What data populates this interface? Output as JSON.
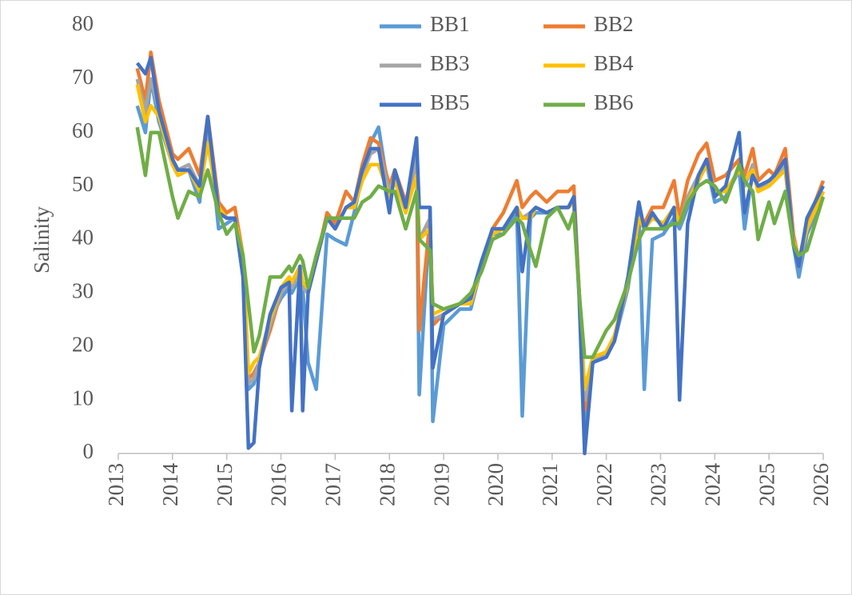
{
  "chart_data": {
    "type": "line",
    "y_label": "Salinity",
    "x": [
      2013.35,
      2013.5,
      2013.6,
      2013.75,
      2014.0,
      2014.1,
      2014.3,
      2014.5,
      2014.65,
      2014.85,
      2015.0,
      2015.15,
      2015.3,
      2015.4,
      2015.5,
      2015.6,
      2015.8,
      2016.0,
      2016.15,
      2016.2,
      2016.35,
      2016.4,
      2016.5,
      2016.65,
      2016.85,
      2017.0,
      2017.2,
      2017.35,
      2017.5,
      2017.65,
      2017.8,
      2018.0,
      2018.1,
      2018.3,
      2018.5,
      2018.55,
      2018.75,
      2018.8,
      2019.0,
      2019.3,
      2019.5,
      2019.7,
      2019.9,
      2020.1,
      2020.35,
      2020.45,
      2020.6,
      2020.7,
      2020.9,
      2021.1,
      2021.3,
      2021.4,
      2021.5,
      2021.6,
      2021.75,
      2022.0,
      2022.15,
      2022.4,
      2022.6,
      2022.7,
      2022.85,
      2023.05,
      2023.25,
      2023.35,
      2023.5,
      2023.7,
      2023.85,
      2024.0,
      2024.2,
      2024.45,
      2024.55,
      2024.7,
      2024.8,
      2025.0,
      2025.1,
      2025.3,
      2025.45,
      2025.55,
      2025.7,
      2026.0
    ],
    "series": [
      {
        "name": "BB1",
        "color": "#5b9bd5",
        "values": [
          65,
          60,
          70,
          62,
          54,
          52,
          53,
          47,
          62,
          42,
          43,
          44,
          33,
          12,
          13,
          17,
          25,
          29,
          31,
          30,
          33,
          31,
          17,
          12,
          41,
          40,
          39,
          45,
          52,
          58,
          61,
          48,
          52,
          45,
          55,
          11,
          45,
          6,
          24,
          27,
          27,
          35,
          41,
          41,
          45,
          7,
          44,
          45,
          45,
          46,
          46,
          47,
          30,
          4,
          17,
          19,
          21,
          31,
          45,
          12,
          40,
          41,
          44,
          42,
          46,
          51,
          54,
          47,
          48,
          53,
          42,
          53,
          49,
          50,
          51,
          53,
          39,
          33,
          41,
          48
        ]
      },
      {
        "name": "BB2",
        "color": "#ed7d31",
        "values": [
          72,
          66,
          75,
          66,
          56,
          55,
          57,
          52,
          63,
          47,
          45,
          46,
          37,
          14,
          15,
          17,
          23,
          30,
          32,
          31,
          34,
          32,
          31,
          36,
          45,
          43,
          49,
          47,
          54,
          59,
          58,
          50,
          53,
          47,
          55,
          23,
          44,
          24,
          26,
          28,
          29,
          35,
          42,
          45,
          51,
          46,
          48,
          49,
          47,
          49,
          49,
          50,
          30,
          8,
          17,
          19,
          22,
          32,
          44,
          43,
          46,
          46,
          51,
          44,
          51,
          56,
          58,
          51,
          52,
          55,
          52,
          57,
          51,
          53,
          52,
          57,
          41,
          36,
          43,
          51
        ]
      },
      {
        "name": "BB3",
        "color": "#a5a5a5",
        "values": [
          70,
          64,
          70,
          64,
          55,
          53,
          54,
          50,
          61,
          46,
          44,
          44,
          36,
          13,
          14,
          17,
          24,
          30,
          32,
          31,
          34,
          31,
          30,
          36,
          44,
          42,
          46,
          46,
          52,
          56,
          57,
          49,
          52,
          46,
          55,
          40,
          44,
          25,
          26,
          28,
          28,
          35,
          42,
          42,
          46,
          44,
          45,
          46,
          45,
          46,
          46,
          48,
          30,
          10,
          17,
          19,
          21,
          32,
          44,
          42,
          44,
          43,
          46,
          43,
          48,
          52,
          55,
          49,
          49,
          53,
          50,
          54,
          49,
          51,
          51,
          54,
          40,
          35,
          42,
          49
        ]
      },
      {
        "name": "BB4",
        "color": "#ffc000",
        "values": [
          69,
          62,
          65,
          63,
          54,
          52,
          53,
          49,
          58,
          46,
          44,
          44,
          37,
          15,
          17,
          18,
          25,
          31,
          33,
          32,
          35,
          32,
          31,
          36,
          44,
          42,
          46,
          46,
          51,
          54,
          54,
          48,
          51,
          45,
          52,
          40,
          42,
          26,
          27,
          28,
          28,
          35,
          41,
          42,
          46,
          44,
          44,
          46,
          45,
          46,
          46,
          47,
          30,
          12,
          18,
          19,
          22,
          32,
          44,
          42,
          44,
          43,
          46,
          43,
          47,
          51,
          54,
          49,
          49,
          53,
          51,
          53,
          49,
          50,
          51,
          53,
          40,
          36,
          42,
          49
        ]
      },
      {
        "name": "BB5",
        "color": "#4472c4",
        "values": [
          73,
          71,
          74,
          64,
          55,
          53,
          53,
          50,
          63,
          45,
          44,
          44,
          33,
          1,
          2,
          16,
          26,
          31,
          32,
          8,
          35,
          8,
          30,
          36,
          44,
          42,
          46,
          47,
          53,
          57,
          57,
          45,
          53,
          46,
          59,
          46,
          46,
          16,
          26,
          28,
          29,
          36,
          42,
          42,
          46,
          34,
          45,
          46,
          45,
          46,
          46,
          48,
          29,
          0,
          17,
          18,
          21,
          33,
          47,
          42,
          45,
          42,
          46,
          10,
          43,
          52,
          55,
          48,
          50,
          60,
          45,
          52,
          50,
          51,
          52,
          55,
          39,
          35,
          44,
          50
        ]
      },
      {
        "name": "BB6",
        "color": "#70ad47",
        "values": [
          61,
          52,
          60,
          60,
          48,
          44,
          49,
          48,
          53,
          45,
          41,
          43,
          37,
          28,
          19,
          22,
          33,
          33,
          35,
          34,
          37,
          36,
          31,
          37,
          44,
          44,
          44,
          44,
          47,
          48,
          50,
          49,
          49,
          42,
          49,
          40,
          38,
          28,
          27,
          28,
          30,
          34,
          40,
          41,
          44,
          43,
          38,
          35,
          44,
          46,
          42,
          45,
          30,
          18,
          18,
          23,
          25,
          32,
          40,
          42,
          42,
          42,
          43,
          43,
          47,
          50,
          51,
          50,
          47,
          54,
          51,
          49,
          40,
          47,
          43,
          49,
          39,
          37,
          38,
          48
        ]
      }
    ],
    "xlim": [
      2013,
      2026
    ],
    "xticks": [
      2013,
      2014,
      2015,
      2016,
      2017,
      2018,
      2019,
      2020,
      2021,
      2022,
      2023,
      2024,
      2025,
      2026
    ],
    "ylim": [
      0,
      80
    ],
    "yticks": [
      0,
      10,
      20,
      30,
      40,
      50,
      60,
      70,
      80
    ],
    "grid": false,
    "legend": "top"
  }
}
